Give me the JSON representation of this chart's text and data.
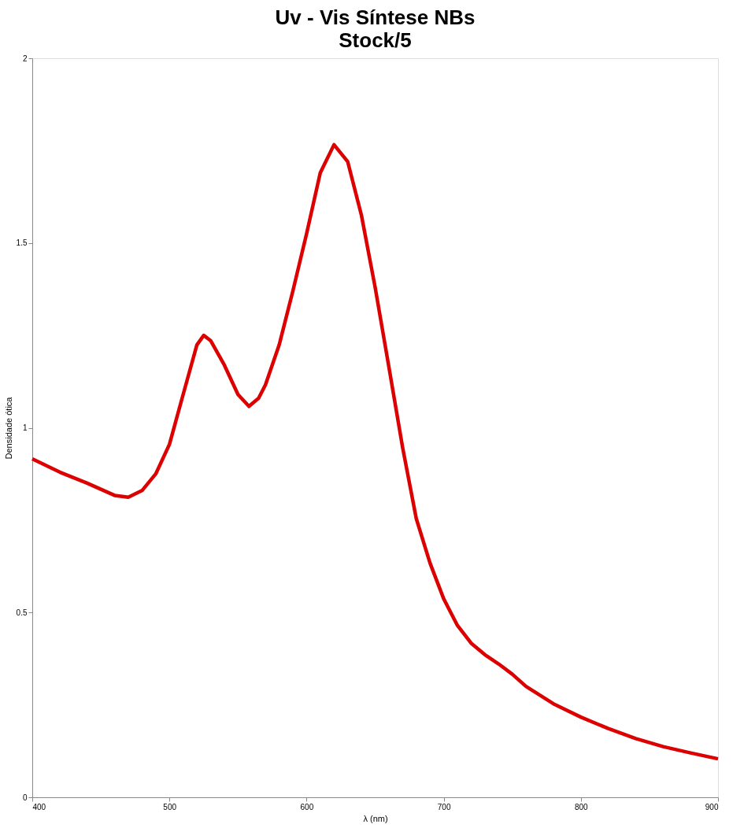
{
  "chart_data": {
    "type": "line",
    "title": "Uv - Vis Síntese NBs",
    "subtitle": "Stock/5",
    "xlabel": "λ (nm)",
    "ylabel": "Densidade ótica",
    "x": [
      400,
      420,
      440,
      460,
      470,
      480,
      490,
      500,
      510,
      520,
      525,
      530,
      540,
      550,
      558,
      565,
      570,
      580,
      590,
      600,
      610,
      620,
      630,
      640,
      650,
      660,
      670,
      680,
      690,
      700,
      710,
      720,
      730,
      740,
      750,
      760,
      780,
      800,
      820,
      840,
      860,
      880,
      900
    ],
    "series": [
      {
        "color": "#dd0000",
        "values": [
          0.916,
          0.88,
          0.85,
          0.817,
          0.812,
          0.83,
          0.875,
          0.955,
          1.09,
          1.224,
          1.25,
          1.236,
          1.17,
          1.09,
          1.058,
          1.08,
          1.116,
          1.224,
          1.37,
          1.525,
          1.69,
          1.766,
          1.72,
          1.575,
          1.38,
          1.165,
          0.947,
          0.754,
          0.634,
          0.537,
          0.465,
          0.417,
          0.386,
          0.361,
          0.333,
          0.3,
          0.253,
          0.217,
          0.186,
          0.159,
          0.137,
          0.12,
          0.104
        ]
      }
    ],
    "xlim": [
      400,
      900
    ],
    "xticks": [
      400,
      500,
      600,
      700,
      800,
      900
    ],
    "ylim": [
      0,
      2
    ],
    "yticks": [
      0,
      0.5,
      1,
      1.5,
      2
    ],
    "grid": false,
    "marker": "none",
    "line_style": "solid"
  }
}
